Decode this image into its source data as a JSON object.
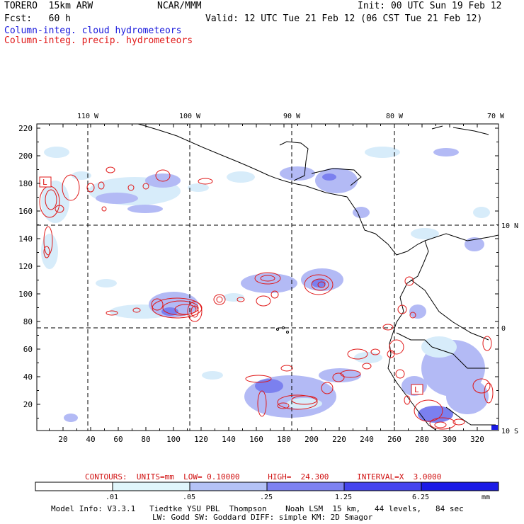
{
  "header": {
    "model_name": "TORERO  15km ARW",
    "org": "NCAR/MMM",
    "init": "Init: 00 UTC Sun 19 Feb 12",
    "fcst": "Fcst:   60 h",
    "valid": "Valid: 12 UTC Tue 21 Feb 12 (06 CST Tue 21 Feb 12)",
    "legend_cloud": "Column-integ. cloud hydrometeors",
    "legend_precip": "Column-integ. precip. hydrometeors"
  },
  "map": {
    "x_ticks": [
      "20",
      "40",
      "60",
      "80",
      "100",
      "120",
      "140",
      "160",
      "180",
      "200",
      "220",
      "240",
      "260",
      "280",
      "300",
      "320"
    ],
    "y_ticks": [
      "20",
      "40",
      "60",
      "80",
      "100",
      "120",
      "140",
      "160",
      "180",
      "200",
      "220"
    ],
    "lon_labels": [
      "110 W",
      "100 W",
      "90 W",
      "80 W",
      "70 W"
    ],
    "lat_labels": [
      "10 N",
      "0",
      "10 S"
    ],
    "low_markers": [
      "L",
      "L"
    ]
  },
  "contours_line": {
    "label": "CONTOURS:  UNITS=mm  LOW= 0.10000      HIGH=  24.300      INTERVAL=X  3.0000"
  },
  "colorbar": {
    "levels": [
      ".01",
      ".05",
      ".25",
      "1.25",
      "6.25"
    ],
    "unit": "mm",
    "colors": [
      "#ffffff",
      "#e0f6fb",
      "#b4c2f6",
      "#7d82f2",
      "#4444ee",
      "#1a1ae6"
    ]
  },
  "footer": {
    "line1": "Model Info: V3.3.1   Tiedtke YSU PBL  Thompson    Noah LSM  15 km,   44 levels,   84 sec",
    "line2": "LW: Godd SW: Goddard DIFF: simple KM: 2D Smagor"
  },
  "colors": {
    "cloud_light": "#d7ecfa",
    "cloud_mid": "#b3baf5",
    "cloud_dark": "#7b80ef",
    "precip_contour": "#e01818",
    "coast": "#000000"
  }
}
